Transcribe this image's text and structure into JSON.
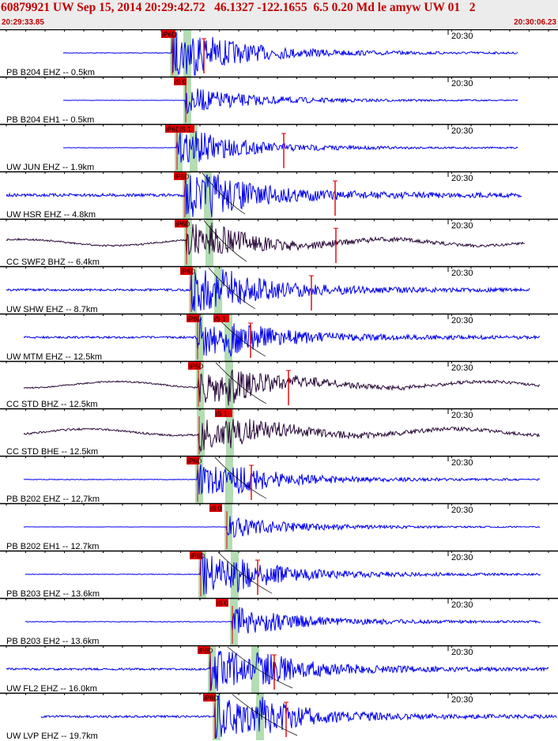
{
  "header": {
    "title": "60879921 UW Sep 15, 2014 20:29:42.72   46.1327 -122.1655  6.5 0.20 Md le amyw UW 01   2",
    "start_time": "20:29:33.85",
    "end_time": "20:30:06.23"
  },
  "tick_label": "20:30",
  "colors": {
    "blue": "#0000ee",
    "dark": "#2a0a3a",
    "pick": "#e00000",
    "window": "#b4ddb4"
  },
  "traces": [
    {
      "label": "PB B204 EHZ -- 0.5km",
      "color": "blue",
      "picks": [
        "iP6D"
      ],
      "pick_pos": [
        [
          204,
          222
        ]
      ],
      "amp": 1.0,
      "noise": 0.04,
      "onset": 218,
      "s_onset": 236,
      "coda_start": 80,
      "coda_end": 655,
      "event_marks": [
        258
      ],
      "arrival_line": false
    },
    {
      "label": "PB B204 EH1 -- 0.5km",
      "color": "blue",
      "picks": [
        "iS 0"
      ],
      "pick_pos": [
        [
          220,
          236
        ]
      ],
      "amp": 0.6,
      "noise": 0.02,
      "onset": 235,
      "s_onset": 238,
      "coda_start": 80,
      "coda_end": 655,
      "event_marks": [],
      "arrival_line": false
    },
    {
      "label": "UW JUN EHZ -- 1.9km",
      "color": "blue",
      "picks": [
        "iP6D",
        "iS 1"
      ],
      "pick_pos": [
        [
          209,
          226
        ],
        [
          226,
          246
        ]
      ],
      "amp": 0.7,
      "noise": 0.03,
      "onset": 224,
      "s_onset": 244,
      "coda_start": 80,
      "coda_end": 655,
      "event_marks": [
        359
      ],
      "arrival_line": false
    },
    {
      "label": "UW HSR EHZ -- 4.8km",
      "color": "blue",
      "picks": [
        "iP6D"
      ],
      "pick_pos": [
        [
          220,
          236
        ]
      ],
      "amp": 1.0,
      "noise": 0.22,
      "onset": 234,
      "s_onset": 262,
      "coda_start": 8,
      "coda_end": 660,
      "event_marks": [
        424
      ],
      "arrival_line": true
    },
    {
      "label": "CC SWF2 BHZ -- 6.4km",
      "color": "dark",
      "picks": [
        "iP6D"
      ],
      "pick_pos": [
        [
          221,
          238
        ]
      ],
      "amp": 0.7,
      "noise": 0.12,
      "onset": 236,
      "s_onset": 264,
      "coda_start": 8,
      "coda_end": 664,
      "event_marks": [
        425
      ],
      "arrival_line": true
    },
    {
      "label": "UW SHW EHZ -- 8.7km",
      "color": "blue",
      "picks": [
        "iP6D"
      ],
      "pick_pos": [
        [
          228,
          244
        ]
      ],
      "amp": 1.0,
      "noise": 0.15,
      "onset": 242,
      "s_onset": 275,
      "coda_start": 8,
      "coda_end": 670,
      "event_marks": [
        394
      ],
      "arrival_line": true
    },
    {
      "label": "UW MTM EHZ -- 12.5km",
      "color": "blue",
      "picks": [
        "iP6D",
        "iS 1"
      ],
      "pick_pos": [
        [
          236,
          252
        ],
        [
          270,
          290
        ]
      ],
      "amp": 0.85,
      "noise": 0.15,
      "onset": 250,
      "s_onset": 288,
      "coda_start": 30,
      "coda_end": 683,
      "event_marks": [
        317
      ],
      "arrival_line": true
    },
    {
      "label": "CC STD BHZ -- 12.5km",
      "color": "dark",
      "picks": [
        "iP6D"
      ],
      "pick_pos": [
        [
          238,
          254
        ]
      ],
      "amp": 0.8,
      "noise": 0.1,
      "onset": 251,
      "s_onset": 289,
      "coda_start": 30,
      "coda_end": 683,
      "event_marks": [
        365
      ],
      "arrival_line": true
    },
    {
      "label": "CC STD BHE -- 12.5km",
      "color": "dark",
      "picks": [
        "iS 1"
      ],
      "pick_pos": [
        [
          272,
          294
        ]
      ],
      "amp": 0.75,
      "noise": 0.14,
      "onset": 252,
      "s_onset": 290,
      "coda_start": 30,
      "coda_end": 683,
      "event_marks": [],
      "arrival_line": false
    },
    {
      "label": "PB B202 EHZ -- 12,7km",
      "color": "blue",
      "picks": [
        "iP6D"
      ],
      "pick_pos": [
        [
          236,
          252
        ]
      ],
      "amp": 0.8,
      "noise": 0.05,
      "onset": 250,
      "s_onset": 289,
      "coda_start": 30,
      "coda_end": 683,
      "event_marks": [
        318
      ],
      "arrival_line": true
    },
    {
      "label": "PB B202 EH1 -- 12.7km",
      "color": "blue",
      "picks": [
        "iS 0"
      ],
      "pick_pos": [
        [
          265,
          281
        ]
      ],
      "amp": 0.5,
      "noise": 0.02,
      "onset": 287,
      "s_onset": 290,
      "coda_start": 30,
      "coda_end": 683,
      "event_marks": [],
      "arrival_line": false
    },
    {
      "label": "PB B203 EHZ -- 13.6km",
      "color": "blue",
      "picks": [
        "iP6D"
      ],
      "pick_pos": [
        [
          240,
          256
        ]
      ],
      "amp": 0.9,
      "noise": 0.05,
      "onset": 254,
      "s_onset": 296,
      "coda_start": 32,
      "coda_end": 684,
      "event_marks": [
        326
      ],
      "arrival_line": true
    },
    {
      "label": "PB B203 EH2 -- 13.6km",
      "color": "blue",
      "picks": [
        "iS 0"
      ],
      "pick_pos": [
        [
          273,
          289
        ]
      ],
      "amp": 0.7,
      "noise": 0.05,
      "onset": 294,
      "s_onset": 300,
      "coda_start": 32,
      "coda_end": 684,
      "event_marks": [],
      "arrival_line": false
    },
    {
      "label": "UW FL2 EHZ -- 16.0km",
      "color": "blue",
      "picks": [
        "iP6D"
      ],
      "pick_pos": [
        [
          250,
          266
        ]
      ],
      "amp": 1.0,
      "noise": 0.15,
      "onset": 266,
      "s_onset": 322,
      "coda_start": 8,
      "coda_end": 694,
      "event_marks": [
        347
      ],
      "arrival_line": true
    },
    {
      "label": "UW LVP EHZ -- 19.7km",
      "color": "blue",
      "picks": [
        "iP6D"
      ],
      "pick_pos": [
        [
          257,
          273
        ]
      ],
      "amp": 1.0,
      "noise": 0.15,
      "onset": 272,
      "s_onset": 328,
      "coda_start": 52,
      "coda_end": 704,
      "event_marks": [
        362
      ],
      "arrival_line": true
    }
  ]
}
